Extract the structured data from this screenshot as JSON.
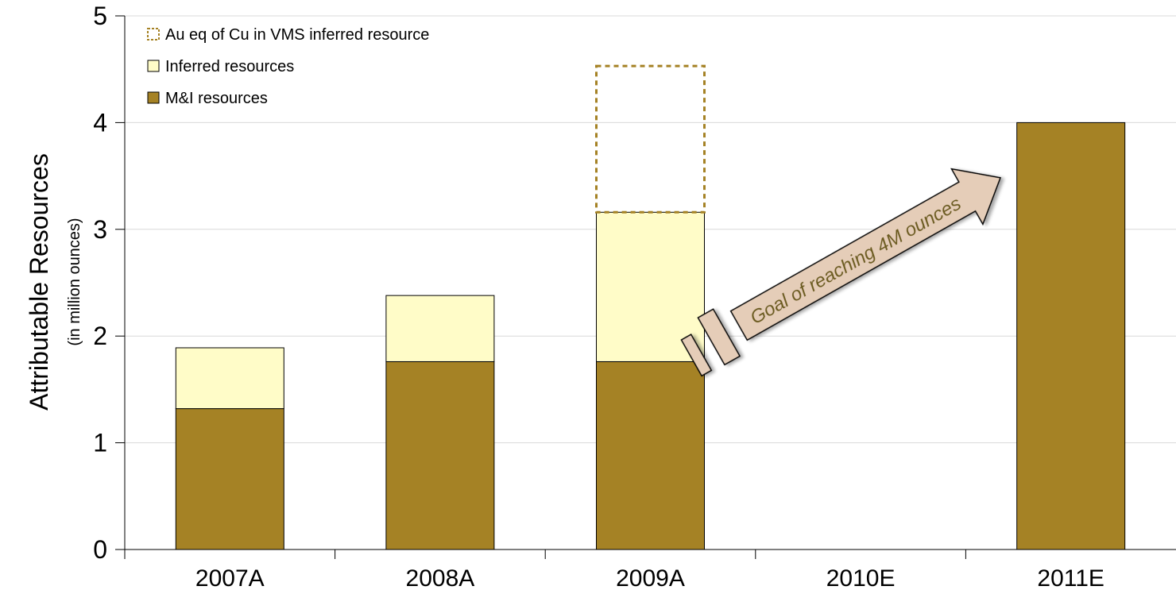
{
  "chart_data": {
    "type": "bar",
    "stacked": true,
    "ylabel": "Attributable Resources",
    "ylabel_sub": "(in million ounces)",
    "xlabel": "",
    "ylim": [
      0,
      5
    ],
    "yticks": [
      0,
      1,
      2,
      3,
      4,
      5
    ],
    "grid": "horizontal",
    "legend_position": "top-left",
    "categories": [
      "2007A",
      "2008A",
      "2009A",
      "2010E",
      "2011E"
    ],
    "series": [
      {
        "name": "M&I resources",
        "values": [
          1.32,
          1.76,
          1.76,
          0,
          4.0
        ],
        "color": "#A58225",
        "style": "solid"
      },
      {
        "name": "Inferred resources",
        "values": [
          0.57,
          0.62,
          1.4,
          0,
          0
        ],
        "color": "#FFFCC8",
        "style": "solid"
      },
      {
        "name": "Au eq of Cu in VMS inferred resource",
        "values": [
          0,
          0,
          1.37,
          0,
          0
        ],
        "color": "#A58225",
        "style": "dashed-outline"
      }
    ],
    "legend_order": [
      "Au eq of Cu in VMS inferred resource",
      "Inferred resources",
      "M&I resources"
    ],
    "annotation": {
      "text": "Goal of reaching 4M ounces",
      "from_category": "2009A",
      "to_category": "2011E",
      "fill": "#E5CDB8",
      "text_color": "#6B5A1E"
    }
  }
}
